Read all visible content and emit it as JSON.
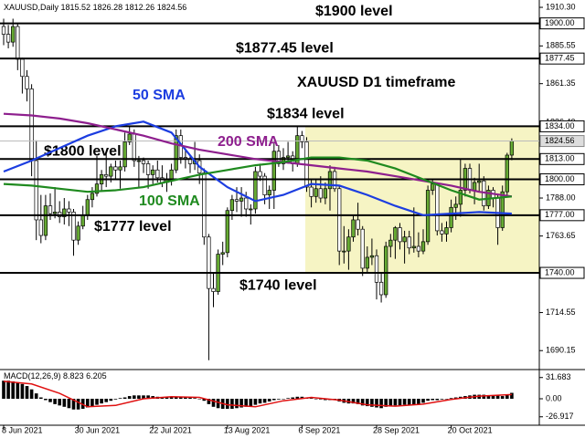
{
  "chart_data": {
    "type": "candlestick",
    "title": "XAUUSD,Daily",
    "subtitle": "XAUUSD D1 timeframe",
    "up_color": "#66aa33",
    "down_color": "#ffffff",
    "ohlc": [
      [
        1898,
        1903,
        1886,
        1893
      ],
      [
        1893,
        1899,
        1884,
        1888
      ],
      [
        1888,
        1903,
        1885,
        1898
      ],
      [
        1898,
        1900,
        1870,
        1877
      ],
      [
        1877,
        1878,
        1855,
        1866
      ],
      [
        1866,
        1870,
        1850,
        1858
      ],
      [
        1858,
        1861,
        1802,
        1812
      ],
      [
        1812,
        1825,
        1761,
        1774
      ],
      [
        1774,
        1790,
        1759,
        1764
      ],
      [
        1764,
        1790,
        1761,
        1783
      ],
      [
        1783,
        1791,
        1774,
        1778
      ],
      [
        1778,
        1795,
        1775,
        1779
      ],
      [
        1779,
        1786,
        1772,
        1776
      ],
      [
        1776,
        1788,
        1771,
        1781
      ],
      [
        1781,
        1786,
        1770,
        1779
      ],
      [
        1779,
        1781,
        1751,
        1761
      ],
      [
        1761,
        1773,
        1758,
        1770
      ],
      [
        1770,
        1783,
        1768,
        1777
      ],
      [
        1777,
        1790,
        1774,
        1787
      ],
      [
        1787,
        1795,
        1782,
        1791
      ],
      [
        1791,
        1815,
        1789,
        1797
      ],
      [
        1797,
        1806,
        1793,
        1803
      ],
      [
        1803,
        1818,
        1795,
        1802
      ],
      [
        1802,
        1810,
        1798,
        1808
      ],
      [
        1808,
        1812,
        1800,
        1806
      ],
      [
        1806,
        1812,
        1794,
        1808
      ],
      [
        1808,
        1830,
        1805,
        1824
      ],
      [
        1824,
        1834,
        1822,
        1829
      ],
      [
        1829,
        1832,
        1808,
        1812
      ],
      [
        1812,
        1815,
        1795,
        1812
      ],
      [
        1812,
        1814,
        1804,
        1810
      ],
      [
        1810,
        1812,
        1794,
        1803
      ],
      [
        1803,
        1809,
        1797,
        1806
      ],
      [
        1806,
        1812,
        1798,
        1801
      ],
      [
        1801,
        1809,
        1795,
        1798
      ],
      [
        1798,
        1804,
        1792,
        1800
      ],
      [
        1800,
        1810,
        1796,
        1806
      ],
      [
        1806,
        1832,
        1804,
        1828
      ],
      [
        1828,
        1832,
        1810,
        1814
      ],
      [
        1814,
        1820,
        1807,
        1813
      ],
      [
        1813,
        1816,
        1804,
        1810
      ],
      [
        1810,
        1824,
        1806,
        1812
      ],
      [
        1812,
        1816,
        1797,
        1804
      ],
      [
        1804,
        1807,
        1758,
        1763
      ],
      [
        1763,
        1765,
        1684,
        1730
      ],
      [
        1730,
        1740,
        1718,
        1728
      ],
      [
        1728,
        1755,
        1726,
        1752
      ],
      [
        1752,
        1760,
        1745,
        1753
      ],
      [
        1753,
        1782,
        1750,
        1780
      ],
      [
        1780,
        1790,
        1774,
        1787
      ],
      [
        1787,
        1795,
        1779,
        1786
      ],
      [
        1786,
        1795,
        1776,
        1788
      ],
      [
        1788,
        1792,
        1776,
        1781
      ],
      [
        1781,
        1784,
        1771,
        1781
      ],
      [
        1781,
        1808,
        1778,
        1805
      ],
      [
        1805,
        1810,
        1799,
        1802
      ],
      [
        1802,
        1804,
        1784,
        1790
      ],
      [
        1790,
        1796,
        1781,
        1793
      ],
      [
        1793,
        1823,
        1781,
        1818
      ],
      [
        1818,
        1822,
        1808,
        1810
      ],
      [
        1810,
        1820,
        1806,
        1814
      ],
      [
        1814,
        1824,
        1810,
        1815
      ],
      [
        1815,
        1818,
        1805,
        1810
      ],
      [
        1810,
        1834,
        1808,
        1828
      ],
      [
        1828,
        1831,
        1820,
        1824
      ],
      [
        1824,
        1827,
        1792,
        1795
      ],
      [
        1795,
        1800,
        1782,
        1789
      ],
      [
        1789,
        1800,
        1785,
        1794
      ],
      [
        1794,
        1802,
        1785,
        1788
      ],
      [
        1788,
        1798,
        1784,
        1794
      ],
      [
        1794,
        1809,
        1780,
        1805
      ],
      [
        1805,
        1808,
        1792,
        1794
      ],
      [
        1794,
        1796,
        1745,
        1754
      ],
      [
        1754,
        1770,
        1746,
        1754
      ],
      [
        1754,
        1768,
        1742,
        1763
      ],
      [
        1763,
        1777,
        1760,
        1774
      ],
      [
        1774,
        1785,
        1764,
        1768
      ],
      [
        1768,
        1770,
        1738,
        1743
      ],
      [
        1743,
        1757,
        1740,
        1750
      ],
      [
        1750,
        1762,
        1745,
        1751
      ],
      [
        1751,
        1755,
        1723,
        1734
      ],
      [
        1734,
        1740,
        1721,
        1726
      ],
      [
        1726,
        1760,
        1724,
        1757
      ],
      [
        1757,
        1765,
        1750,
        1761
      ],
      [
        1761,
        1770,
        1749,
        1769
      ],
      [
        1769,
        1772,
        1755,
        1760
      ],
      [
        1760,
        1767,
        1746,
        1763
      ],
      [
        1763,
        1767,
        1752,
        1756
      ],
      [
        1756,
        1782,
        1753,
        1757
      ],
      [
        1757,
        1766,
        1750,
        1754
      ],
      [
        1754,
        1768,
        1752,
        1760
      ],
      [
        1760,
        1796,
        1758,
        1793
      ],
      [
        1793,
        1800,
        1790,
        1797
      ],
      [
        1797,
        1798,
        1764,
        1767
      ],
      [
        1767,
        1772,
        1760,
        1765
      ],
      [
        1765,
        1773,
        1760,
        1769
      ],
      [
        1769,
        1787,
        1766,
        1782
      ],
      [
        1782,
        1789,
        1774,
        1784
      ],
      [
        1784,
        1813,
        1776,
        1793
      ],
      [
        1793,
        1810,
        1789,
        1807
      ],
      [
        1807,
        1810,
        1791,
        1793
      ],
      [
        1793,
        1801,
        1784,
        1798
      ],
      [
        1798,
        1810,
        1792,
        1799
      ],
      [
        1799,
        1802,
        1780,
        1783
      ],
      [
        1783,
        1796,
        1781,
        1793
      ],
      [
        1793,
        1795,
        1782,
        1788
      ],
      [
        1788,
        1790,
        1758,
        1769
      ],
      [
        1769,
        1796,
        1767,
        1792
      ],
      [
        1792,
        1817,
        1789,
        1815.52
      ],
      [
        1815.52,
        1826.28,
        1812.26,
        1824.56
      ]
    ],
    "xticks": [
      {
        "value": 0,
        "label": "8 Jun 2021"
      },
      {
        "value": 16,
        "label": "30 Jun 2021"
      },
      {
        "value": 32,
        "label": "22 Jul 2021"
      },
      {
        "value": 48,
        "label": "13 Aug 2021"
      },
      {
        "value": 64,
        "label": "6 Sep 2021"
      },
      {
        "value": 80,
        "label": "28 Sep 2021"
      },
      {
        "value": 96,
        "label": "20 Oct 2021"
      }
    ],
    "ylim": [
      1678,
      1915
    ],
    "yticks": [
      {
        "value": 1910.3,
        "label": "1910.30"
      },
      {
        "value": 1885.55,
        "label": "1885.55"
      },
      {
        "value": 1861.35,
        "label": "1861.35"
      },
      {
        "value": 1836.4,
        "label": "1836.40"
      },
      {
        "value": 1788,
        "label": "1788.00"
      },
      {
        "value": 1763.65,
        "label": "1763.65"
      },
      {
        "value": 1714.55,
        "label": "1714.55"
      },
      {
        "value": 1690.15,
        "label": "1690.15"
      }
    ],
    "levels": [
      {
        "value": 1900,
        "label": "1900.00",
        "text": "$1900 level"
      },
      {
        "value": 1877.45,
        "label": "1877.45",
        "text": "$1877.45 level"
      },
      {
        "value": 1834,
        "label": "1834.00",
        "text": "$1834 level"
      },
      {
        "value": 1813,
        "label": "1813.00"
      },
      {
        "value": 1800,
        "label": "1800.00",
        "text": "$1800 level"
      },
      {
        "value": 1777,
        "label": "1777.00",
        "text": "$1777 level"
      },
      {
        "value": 1740,
        "label": "1740.00",
        "text": "$1740 level"
      }
    ],
    "x": [
      0,
      6,
      12,
      18,
      24,
      30,
      36,
      42,
      48,
      54,
      60,
      66,
      72,
      78,
      84,
      90,
      96,
      102,
      109
    ],
    "series": [
      {
        "name": "50 SMA",
        "color": "#1c3de0",
        "values": [
          1805,
          1812,
          1820,
          1828,
          1834,
          1837,
          1830,
          1808,
          1795,
          1786,
          1790,
          1797,
          1796,
          1790,
          1783,
          1777,
          1778,
          1779,
          1778
        ]
      },
      {
        "name": "200 SMA",
        "color": "#8e1f8e",
        "values": [
          1842,
          1841,
          1839,
          1836,
          1832,
          1828,
          1823,
          1819,
          1816,
          1813,
          1811,
          1809,
          1807,
          1805,
          1802,
          1799,
          1796,
          1792,
          1789
        ]
      },
      {
        "name": "100 SMA",
        "color": "#1f8a1f",
        "values": [
          1797,
          1796,
          1794,
          1792,
          1793,
          1795,
          1799,
          1803,
          1806,
          1809,
          1811,
          1814,
          1814,
          1812,
          1807,
          1800,
          1793,
          1787,
          1789
        ]
      }
    ],
    "macd": {
      "title": "MACD(12,26,9)",
      "ylim": [
        -39.5,
        39.5
      ],
      "yticks": [
        31.683,
        {
          "value": 0,
          "label": "0.00"
        },
        -26.917
      ],
      "histogram_color": "#000000",
      "signal_color": "#e01010",
      "histogram": [
        27,
        27,
        26,
        24,
        22,
        19,
        14,
        8,
        2,
        -2,
        -5,
        -8,
        -10,
        -12,
        -14,
        -16,
        -16,
        -15,
        -13,
        -11,
        -9,
        -7,
        -5,
        -3,
        -1,
        1,
        2,
        4,
        5,
        5,
        5,
        5,
        4,
        3,
        2,
        2,
        3,
        3,
        3,
        3,
        2,
        1,
        0,
        -3,
        -8,
        -12,
        -14,
        -15,
        -15,
        -15,
        -14,
        -13,
        -12,
        -11,
        -9,
        -7,
        -6,
        -4,
        -2,
        -1,
        0,
        1,
        2,
        3,
        3,
        2,
        1,
        0,
        -1,
        -2,
        -2,
        -2,
        -4,
        -6,
        -7,
        -7,
        -8,
        -10,
        -11,
        -12,
        -13,
        -14,
        -12,
        -11,
        -10,
        -10,
        -9,
        -9,
        -9,
        -9,
        -6,
        -3,
        -2,
        -2,
        -1,
        0,
        1,
        2,
        3,
        4,
        5,
        6,
        6,
        6,
        5,
        5,
        5,
        4,
        6,
        8.823
      ],
      "signal": [
        26,
        22,
        8,
        -12,
        -10,
        0,
        3,
        2,
        -9,
        -12,
        -3,
        2,
        -2,
        -9,
        -11,
        -8,
        -1,
        4,
        6.205
      ]
    }
  }
}
